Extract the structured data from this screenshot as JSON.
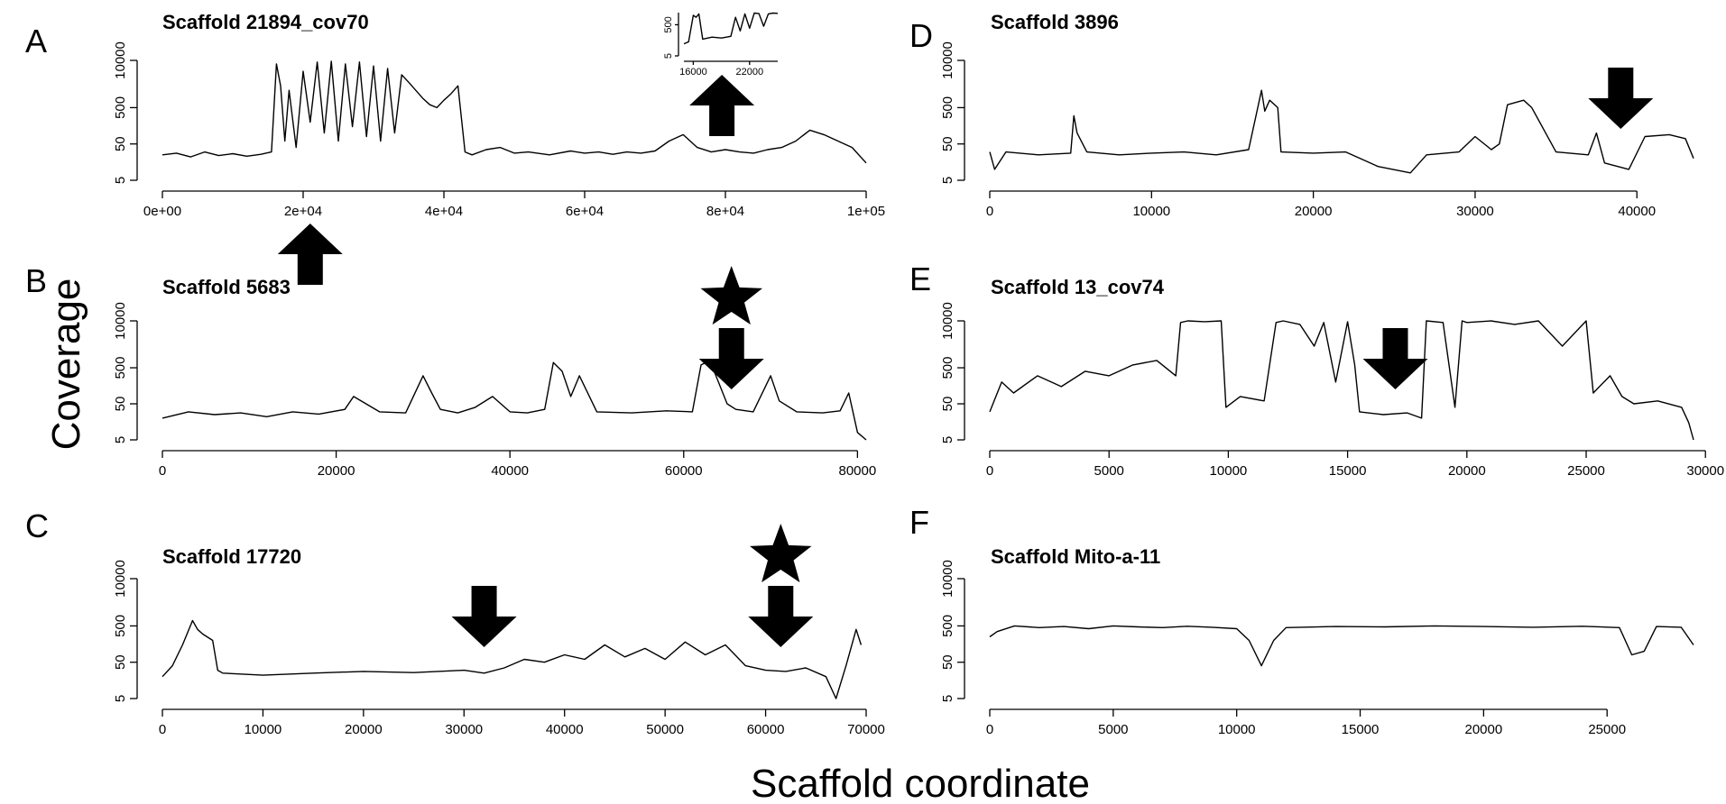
{
  "figure": {
    "ylabel": "Coverage",
    "xlabel": "Scaffold coordinate"
  },
  "chart_data": [
    {
      "panel": "A",
      "type": "line",
      "title": "Scaffold 21894_cov70",
      "xlabel": "",
      "ylabel": "Coverage",
      "y_scale": "log",
      "xlim": [
        0,
        100000
      ],
      "ylim": [
        5,
        10000
      ],
      "xticks": [
        0,
        20000,
        40000,
        60000,
        80000,
        100000
      ],
      "xtick_labels": [
        "0e+00",
        "2e+04",
        "4e+04",
        "6e+04",
        "8e+04",
        "1e+05"
      ],
      "yticks": [
        5,
        50,
        500,
        10000
      ],
      "ytick_labels": [
        "5",
        "50",
        "500",
        "10000"
      ],
      "series": [
        {
          "x": [
            0,
            2000,
            4000,
            6000,
            8000,
            10000,
            12000,
            14000,
            15500,
            16200,
            16800,
            17400,
            18000,
            19000,
            20000,
            21000,
            22000,
            23000,
            24000,
            25000,
            26000,
            27000,
            28000,
            29000,
            30000,
            31000,
            32000,
            33000,
            34000,
            35000,
            36000,
            37000,
            38000,
            39000,
            40000,
            41000,
            42000,
            43000,
            44000,
            46000,
            48000,
            50000,
            52000,
            55000,
            58000,
            60000,
            62000,
            64000,
            66000,
            68000,
            70000,
            72000,
            74000,
            76000,
            78000,
            80000,
            82000,
            84000,
            86000,
            88000,
            90000,
            92000,
            94000,
            96000,
            98000,
            100000
          ],
          "y": [
            25,
            28,
            22,
            30,
            24,
            27,
            23,
            26,
            30,
            8000,
            2000,
            60,
            1500,
            40,
            5000,
            200,
            9000,
            100,
            9500,
            60,
            8000,
            150,
            9000,
            80,
            7000,
            60,
            6000,
            100,
            4000,
            2500,
            1500,
            900,
            600,
            500,
            800,
            1200,
            2000,
            30,
            25,
            35,
            40,
            28,
            30,
            25,
            32,
            28,
            30,
            26,
            30,
            28,
            32,
            60,
            90,
            40,
            30,
            35,
            30,
            28,
            35,
            40,
            60,
            120,
            90,
            60,
            40,
            15
          ]
        }
      ],
      "inset": {
        "xlim": [
          15000,
          25000
        ],
        "ylim": [
          5,
          3000
        ],
        "xticks": [
          16000,
          22000
        ],
        "xtick_labels": [
          "16000",
          "22000"
        ],
        "yticks": [
          5,
          500
        ],
        "ytick_labels": [
          "5",
          "500"
        ],
        "x": [
          15000,
          15500,
          16000,
          16300,
          16600,
          17000,
          18000,
          19000,
          20000,
          20500,
          21000,
          21500,
          22000,
          22500,
          23000,
          23500,
          24000,
          24500,
          25000
        ],
        "y": [
          30,
          40,
          2000,
          1500,
          2500,
          60,
          80,
          70,
          90,
          1500,
          200,
          2500,
          300,
          2800,
          2600,
          400,
          2500,
          2800,
          2700
        ]
      },
      "markers": [
        {
          "shape": "arrow-up",
          "x": 21000,
          "position": "below-axis"
        },
        {
          "shape": "arrow-up",
          "x": 79500,
          "position": "above-plot"
        }
      ]
    },
    {
      "panel": "B",
      "type": "line",
      "title": "Scaffold 5683",
      "xlabel": "",
      "ylabel": "Coverage",
      "y_scale": "log",
      "xlim": [
        0,
        81000
      ],
      "ylim": [
        5,
        10000
      ],
      "xticks": [
        0,
        20000,
        40000,
        60000,
        80000
      ],
      "xtick_labels": [
        "0",
        "20000",
        "40000",
        "60000",
        "80000"
      ],
      "yticks": [
        5,
        50,
        500,
        10000
      ],
      "ytick_labels": [
        "5",
        "50",
        "500",
        "10000"
      ],
      "series": [
        {
          "x": [
            0,
            3000,
            6000,
            9000,
            12000,
            15000,
            18000,
            21000,
            22000,
            25000,
            28000,
            30000,
            31000,
            32000,
            34000,
            36000,
            38000,
            40000,
            42000,
            44000,
            45000,
            46000,
            47000,
            48000,
            50000,
            54000,
            58000,
            61000,
            62000,
            63000,
            64000,
            65000,
            66000,
            68000,
            70000,
            71000,
            73000,
            76000,
            78000,
            79000,
            80000,
            81000
          ],
          "y": [
            20,
            30,
            25,
            28,
            22,
            30,
            26,
            35,
            80,
            30,
            28,
            300,
            100,
            35,
            28,
            40,
            80,
            30,
            28,
            35,
            700,
            400,
            80,
            300,
            30,
            28,
            32,
            30,
            600,
            800,
            200,
            50,
            35,
            30,
            300,
            60,
            30,
            28,
            32,
            100,
            8,
            5
          ]
        }
      ],
      "markers": [
        {
          "shape": "star",
          "x": 65500,
          "position": "above-plot"
        },
        {
          "shape": "arrow-down",
          "x": 65500,
          "position": "in-plot"
        }
      ]
    },
    {
      "panel": "C",
      "type": "line",
      "title": "Scaffold 17720",
      "xlabel": "",
      "ylabel": "Coverage",
      "y_scale": "log",
      "xlim": [
        0,
        70000
      ],
      "ylim": [
        5,
        10000
      ],
      "xticks": [
        0,
        10000,
        20000,
        30000,
        40000,
        50000,
        60000,
        70000
      ],
      "xtick_labels": [
        "0",
        "10000",
        "20000",
        "30000",
        "40000",
        "50000",
        "60000",
        "70000"
      ],
      "yticks": [
        5,
        50,
        500,
        10000
      ],
      "ytick_labels": [
        "5",
        "50",
        "500",
        "10000"
      ],
      "series": [
        {
          "x": [
            0,
            1000,
            2000,
            3000,
            3500,
            4000,
            5000,
            5500,
            6000,
            10000,
            15000,
            20000,
            25000,
            30000,
            32000,
            34000,
            36000,
            38000,
            40000,
            42000,
            44000,
            46000,
            48000,
            50000,
            52000,
            54000,
            56000,
            58000,
            60000,
            62000,
            64000,
            66000,
            67000,
            68000,
            69000,
            69500
          ],
          "y": [
            20,
            40,
            150,
            700,
            400,
            300,
            200,
            30,
            25,
            22,
            25,
            28,
            26,
            30,
            25,
            35,
            60,
            50,
            80,
            60,
            150,
            70,
            120,
            60,
            180,
            80,
            150,
            40,
            30,
            28,
            35,
            20,
            5,
            40,
            400,
            150
          ]
        }
      ],
      "markers": [
        {
          "shape": "arrow-down",
          "x": 32000,
          "position": "in-plot"
        },
        {
          "shape": "star",
          "x": 61500,
          "position": "above-plot"
        },
        {
          "shape": "arrow-down",
          "x": 61500,
          "position": "in-plot"
        }
      ]
    },
    {
      "panel": "D",
      "type": "line",
      "title": "Scaffold 3896",
      "xlabel": "",
      "ylabel": "Coverage",
      "y_scale": "log",
      "xlim": [
        0,
        43500
      ],
      "ylim": [
        5,
        10000
      ],
      "xticks": [
        0,
        10000,
        20000,
        30000,
        40000
      ],
      "xtick_labels": [
        "0",
        "10000",
        "20000",
        "30000",
        "40000"
      ],
      "yticks": [
        5,
        50,
        500,
        10000
      ],
      "ytick_labels": [
        "5",
        "50",
        "500",
        "10000"
      ],
      "series": [
        {
          "x": [
            0,
            300,
            1000,
            3000,
            5000,
            5200,
            5400,
            6000,
            8000,
            10000,
            12000,
            14000,
            16000,
            16800,
            17000,
            17300,
            17800,
            18000,
            20000,
            22000,
            24000,
            26000,
            27000,
            29000,
            30000,
            31000,
            31500,
            32000,
            33000,
            33500,
            35000,
            37000,
            37500,
            38000,
            39500,
            40500,
            42000,
            43000,
            43500
          ],
          "y": [
            30,
            10,
            30,
            25,
            28,
            300,
            100,
            30,
            25,
            28,
            30,
            25,
            35,
            1500,
            400,
            800,
            500,
            30,
            28,
            30,
            12,
            8,
            25,
            30,
            80,
            35,
            50,
            600,
            800,
            500,
            30,
            25,
            100,
            15,
            10,
            80,
            90,
            70,
            20
          ]
        }
      ],
      "markers": [
        {
          "shape": "arrow-down",
          "x": 39000,
          "position": "in-plot"
        }
      ]
    },
    {
      "panel": "E",
      "type": "line",
      "title": "Scaffold 13_cov74",
      "xlabel": "",
      "ylabel": "Coverage",
      "y_scale": "log",
      "xlim": [
        0,
        29500
      ],
      "ylim": [
        5,
        10000
      ],
      "xticks": [
        0,
        5000,
        10000,
        15000,
        20000,
        25000,
        30000
      ],
      "xtick_labels": [
        "0",
        "5000",
        "10000",
        "15000",
        "20000",
        "25000",
        "30000"
      ],
      "yticks": [
        5,
        50,
        500,
        10000
      ],
      "ytick_labels": [
        "5",
        "50",
        "500",
        "10000"
      ],
      "series": [
        {
          "x": [
            0,
            500,
            1000,
            2000,
            3000,
            4000,
            5000,
            6000,
            7000,
            7800,
            8000,
            8300,
            9000,
            9700,
            9900,
            10500,
            11500,
            12000,
            12300,
            13000,
            13600,
            14000,
            14500,
            15000,
            15300,
            15500,
            16500,
            17500,
            18100,
            18300,
            19000,
            19500,
            19800,
            20000,
            21000,
            22000,
            23000,
            24000,
            25000,
            25300,
            26000,
            26500,
            27000,
            28000,
            29000,
            29300,
            29500
          ],
          "y": [
            30,
            200,
            100,
            300,
            150,
            400,
            300,
            600,
            800,
            300,
            9000,
            10000,
            9500,
            10000,
            40,
            80,
            60,
            9000,
            10000,
            8000,
            2000,
            9000,
            200,
            9500,
            600,
            30,
            25,
            28,
            20,
            10000,
            9000,
            40,
            10000,
            9000,
            10000,
            8000,
            10000,
            2000,
            10000,
            100,
            300,
            80,
            50,
            60,
            40,
            15,
            5
          ]
        }
      ],
      "markers": [
        {
          "shape": "arrow-down",
          "x": 17000,
          "position": "in-plot"
        }
      ]
    },
    {
      "panel": "F",
      "type": "line",
      "title": "Scaffold Mito-a-11",
      "xlabel": "",
      "ylabel": "Coverage",
      "y_scale": "log",
      "xlim": [
        0,
        28500
      ],
      "ylim": [
        5,
        10000
      ],
      "xticks": [
        0,
        5000,
        10000,
        15000,
        20000,
        25000
      ],
      "xtick_labels": [
        "0",
        "5000",
        "10000",
        "15000",
        "20000",
        "25000"
      ],
      "yticks": [
        5,
        50,
        500,
        10000
      ],
      "ytick_labels": [
        "5",
        "50",
        "500",
        "10000"
      ],
      "series": [
        {
          "x": [
            0,
            300,
            1000,
            2000,
            3000,
            4000,
            5000,
            6000,
            7000,
            8000,
            9000,
            10000,
            10500,
            11000,
            11500,
            12000,
            14000,
            16000,
            18000,
            20000,
            22000,
            24000,
            25500,
            26000,
            26500,
            27000,
            28000,
            28500
          ],
          "y": [
            250,
            350,
            500,
            450,
            480,
            420,
            500,
            470,
            450,
            490,
            460,
            420,
            200,
            40,
            200,
            450,
            480,
            470,
            500,
            480,
            460,
            490,
            450,
            80,
            100,
            480,
            460,
            150
          ]
        }
      ],
      "markers": []
    }
  ]
}
